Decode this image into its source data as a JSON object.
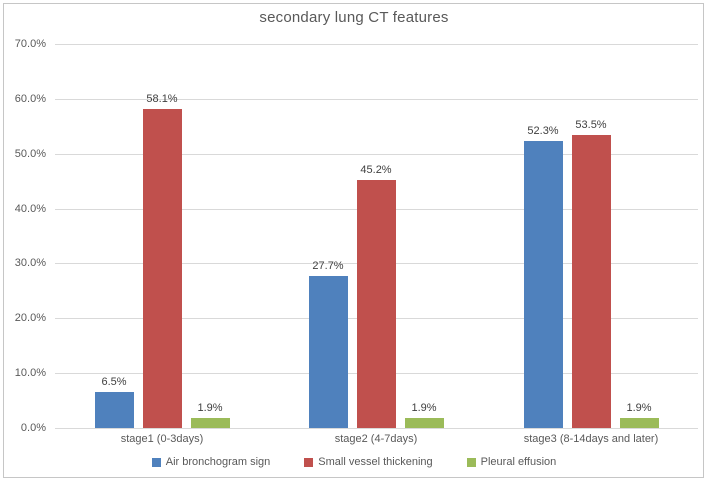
{
  "title": "secondary lung CT features",
  "colors": {
    "series_blue": "#4F81BD",
    "series_red": "#C0504D",
    "series_green": "#9BBB59",
    "gridline": "#d9d9d9",
    "axis_text": "#595959",
    "data_label_text": "#404040",
    "border": "#c6c6c6"
  },
  "chart_data": {
    "type": "bar",
    "title": "secondary lung CT features",
    "categories": [
      "stage1 (0-3days)",
      "stage2 (4-7days)",
      "stage3 (8-14days and later)"
    ],
    "series": [
      {
        "name": "Air bronchogram sign",
        "color": "#4F81BD",
        "values": [
          6.5,
          27.7,
          52.3
        ],
        "labels": [
          "6.5%",
          "27.7%",
          "52.3%"
        ]
      },
      {
        "name": "Small vessel thickening",
        "color": "#C0504D",
        "values": [
          58.1,
          45.2,
          53.5
        ],
        "labels": [
          "58.1%",
          "45.2%",
          "53.5%"
        ]
      },
      {
        "name": "Pleural effusion",
        "color": "#9BBB59",
        "values": [
          1.9,
          1.9,
          1.9
        ],
        "labels": [
          "1.9%",
          "1.9%",
          "1.9%"
        ]
      }
    ],
    "xlabel": "",
    "ylabel": "",
    "ylim": [
      0,
      70
    ],
    "ytick_step": 10,
    "ytick_labels": [
      "0.0%",
      "10.0%",
      "20.0%",
      "30.0%",
      "40.0%",
      "50.0%",
      "60.0%",
      "70.0%"
    ],
    "grid": true,
    "legend_position": "bottom"
  }
}
